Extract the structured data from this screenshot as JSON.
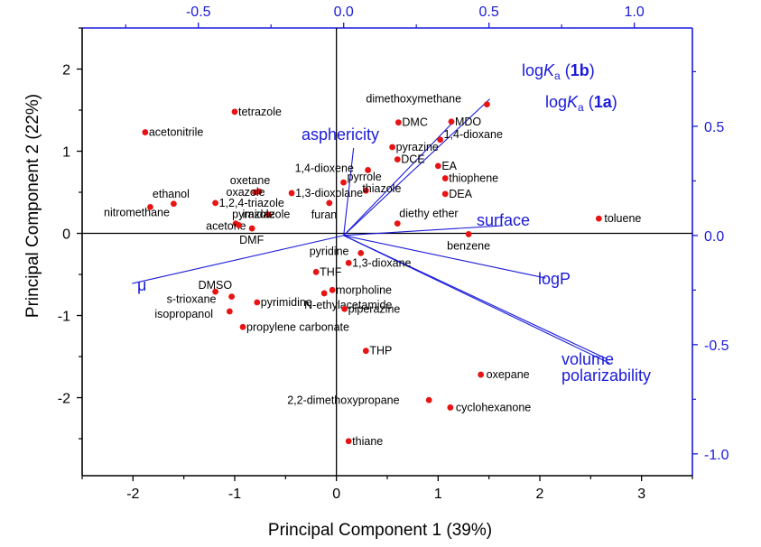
{
  "chart_data": {
    "type": "scatter",
    "title": "",
    "xlabel": "Principal Component 1 (39%)",
    "ylabel": "Principal Component 2 (22%)",
    "xlim": [
      -2.5,
      3.5
    ],
    "ylim": [
      -2.95,
      2.5
    ],
    "x_ticks": [
      "-2",
      "-1",
      "0",
      "1",
      "2",
      "3"
    ],
    "y_ticks": [
      "-2",
      "-1",
      "0",
      "1",
      "2"
    ],
    "top_axis": {
      "range": [
        -0.9,
        1.2
      ],
      "ticks": [
        "-0.5",
        "0.0",
        "0.5",
        "1.0"
      ]
    },
    "right_axis": {
      "range": [
        -1.1,
        0.95
      ],
      "ticks": [
        "-1.0",
        "-0.5",
        "0.0",
        "0.5"
      ]
    },
    "colors": {
      "points": "#e81414",
      "vectors": "#1a1adb",
      "axes": "#000000"
    },
    "points": [
      {
        "label": "tetrazole",
        "x": -1.0,
        "y": 1.48
      },
      {
        "label": "acetonitrile",
        "x": -1.88,
        "y": 1.23
      },
      {
        "label": "ethanol",
        "x": -1.6,
        "y": 0.36
      },
      {
        "label": "nitromethane",
        "x": -1.83,
        "y": 0.32
      },
      {
        "label": "oxetane",
        "x": -0.76,
        "y": 0.51
      },
      {
        "label": "oxazole",
        "x": -0.8,
        "y": 0.5
      },
      {
        "label": "1,2,4-triazole",
        "x": -1.19,
        "y": 0.37
      },
      {
        "label": "pyrazole",
        "x": -0.67,
        "y": 0.23
      },
      {
        "label": "acetone",
        "x": -0.99,
        "y": 0.12
      },
      {
        "label": "imidazole",
        "x": -0.96,
        "y": 0.1
      },
      {
        "label": "DMF",
        "x": -0.83,
        "y": 0.06
      },
      {
        "label": "1,3-dioxolane",
        "x": -0.44,
        "y": 0.49
      },
      {
        "label": "furan",
        "x": -0.07,
        "y": 0.37
      },
      {
        "label": "pyrrole",
        "x": 0.07,
        "y": 0.62
      },
      {
        "label": "1,4-dioxene",
        "x": 0.31,
        "y": 0.77
      },
      {
        "label": "thiazole",
        "x": 0.29,
        "y": 0.52
      },
      {
        "label": "dimethoxymethane",
        "x": 1.48,
        "y": 1.57
      },
      {
        "label": "MDO",
        "x": 1.13,
        "y": 1.36
      },
      {
        "label": "DMC",
        "x": 0.61,
        "y": 1.35
      },
      {
        "label": "1,4-dioxane",
        "x": 1.02,
        "y": 1.14
      },
      {
        "label": "pyrazine",
        "x": 0.55,
        "y": 1.05
      },
      {
        "label": "DCE",
        "x": 0.6,
        "y": 0.9
      },
      {
        "label": "EA",
        "x": 1.0,
        "y": 0.82
      },
      {
        "label": "thiophene",
        "x": 1.07,
        "y": 0.67
      },
      {
        "label": "DEA",
        "x": 1.07,
        "y": 0.48
      },
      {
        "label": "diethy ether",
        "x": 0.6,
        "y": 0.12
      },
      {
        "label": "benzene",
        "x": 1.3,
        "y": -0.01
      },
      {
        "label": "toluene",
        "x": 2.58,
        "y": 0.18
      },
      {
        "label": "pyridine",
        "x": 0.24,
        "y": -0.24
      },
      {
        "label": "1,3-dioxane",
        "x": 0.12,
        "y": -0.36
      },
      {
        "label": "THF",
        "x": -0.2,
        "y": -0.47
      },
      {
        "label": "morpholine",
        "x": -0.04,
        "y": -0.69
      },
      {
        "label": "N-ethylacetamide",
        "x": -0.12,
        "y": -0.73
      },
      {
        "label": "piperazine",
        "x": 0.08,
        "y": -0.92
      },
      {
        "label": "pyrimidine",
        "x": -0.78,
        "y": -0.84
      },
      {
        "label": "DMSO",
        "x": -1.19,
        "y": -0.71
      },
      {
        "label": "s-trioxane",
        "x": -1.03,
        "y": -0.77
      },
      {
        "label": "isopropanol",
        "x": -1.05,
        "y": -0.95
      },
      {
        "label": "propylene carbonate",
        "x": -0.92,
        "y": -1.14
      },
      {
        "label": "THP",
        "x": 0.29,
        "y": -1.43
      },
      {
        "label": "oxepane",
        "x": 1.42,
        "y": -1.72
      },
      {
        "label": "2,2-dimethoxypropane",
        "x": 0.91,
        "y": -2.03
      },
      {
        "label": "cyclohexanone",
        "x": 1.12,
        "y": -2.12
      },
      {
        "label": "thiane",
        "x": 0.12,
        "y": -2.53
      }
    ],
    "loadings": [
      {
        "label": "logK",
        "subscript": "a",
        "suffix_bold": "1b",
        "x": 0.503,
        "y": 0.625
      },
      {
        "label": "logK",
        "subscript": "a",
        "suffix_bold": "1a",
        "x": 0.37,
        "y": 0.51
      },
      {
        "label": "asphericity",
        "x": 0.034,
        "y": 0.4
      },
      {
        "label": "surface",
        "x": 0.548,
        "y": 0.045
      },
      {
        "label": "logP",
        "x": 0.695,
        "y": -0.195
      },
      {
        "label": "volume",
        "x": 0.905,
        "y": -0.565
      },
      {
        "label": "polarizability",
        "x": 0.915,
        "y": -0.585
      },
      {
        "label": "μ",
        "x": -0.728,
        "y": -0.22
      }
    ]
  }
}
